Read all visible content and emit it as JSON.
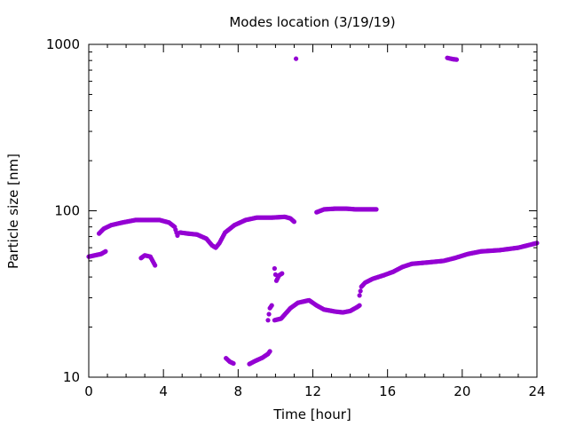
{
  "chart_data": {
    "type": "scatter",
    "title": "Modes location (3/19/19)",
    "xlabel": "Time [hour]",
    "ylabel": "Particle size [nm]",
    "xlim": [
      0,
      24
    ],
    "ylim": [
      10,
      1000
    ],
    "y_scale": "log",
    "grid": false,
    "legend": "none",
    "marker_color": "#9400d3",
    "x_ticks": [
      0,
      4,
      8,
      12,
      16,
      20,
      24
    ],
    "x_tick_labels": [
      "0",
      "4",
      "8",
      "12",
      "16",
      "20",
      "24"
    ],
    "y_ticks": [
      10,
      100,
      1000
    ],
    "y_tick_labels": [
      "10",
      "100",
      "1000"
    ],
    "series": [
      {
        "segments": [
          [
            [
              0.0,
              53
            ],
            [
              0.33,
              54
            ],
            [
              0.66,
              55
            ],
            [
              0.9,
              57
            ]
          ],
          [
            [
              0.55,
              73
            ],
            [
              0.8,
              78
            ],
            [
              1.2,
              82
            ],
            [
              1.8,
              85
            ],
            [
              2.5,
              88
            ],
            [
              3.2,
              88
            ],
            [
              3.8,
              88
            ],
            [
              4.3,
              85
            ],
            [
              4.6,
              80
            ],
            [
              4.75,
              71
            ]
          ],
          [
            [
              4.9,
              74
            ],
            [
              5.3,
              73
            ],
            [
              5.8,
              72
            ],
            [
              6.3,
              68
            ],
            [
              6.6,
              62
            ],
            [
              6.8,
              60
            ],
            [
              7.0,
              64
            ],
            [
              7.3,
              74
            ],
            [
              7.8,
              82
            ],
            [
              8.4,
              88
            ],
            [
              9.0,
              91
            ],
            [
              9.8,
              91
            ],
            [
              10.5,
              92
            ],
            [
              10.8,
              90
            ],
            [
              11.0,
              86
            ]
          ],
          [
            [
              2.8,
              52
            ],
            [
              3.0,
              54
            ],
            [
              3.3,
              53
            ],
            [
              3.55,
              47
            ]
          ],
          [
            [
              7.35,
              13
            ],
            [
              7.55,
              12.4
            ],
            [
              7.75,
              12.1
            ]
          ],
          [
            [
              8.6,
              12
            ],
            [
              8.9,
              12.5
            ],
            [
              9.3,
              13.1
            ],
            [
              9.6,
              13.8
            ],
            [
              9.7,
              14.3
            ]
          ],
          [
            [
              9.6,
              22
            ],
            [
              9.7,
              26
            ],
            [
              9.8,
              27
            ]
          ],
          [
            [
              9.95,
              45
            ],
            [
              10.05,
              38
            ],
            [
              10.2,
              41
            ],
            [
              10.35,
              42
            ]
          ],
          [
            [
              9.95,
              22
            ],
            [
              10.3,
              22.5
            ],
            [
              10.8,
              26
            ],
            [
              11.2,
              28
            ],
            [
              11.8,
              29
            ],
            [
              12.2,
              27
            ],
            [
              12.6,
              25.5
            ],
            [
              13.2,
              24.8
            ],
            [
              13.6,
              24.5
            ],
            [
              14.0,
              25
            ],
            [
              14.4,
              26.5
            ],
            [
              14.5,
              27
            ]
          ],
          [
            [
              12.2,
              98
            ],
            [
              12.6,
              102
            ],
            [
              13.2,
              103
            ],
            [
              13.8,
              103
            ],
            [
              14.3,
              102
            ],
            [
              14.9,
              102
            ],
            [
              15.4,
              102
            ]
          ],
          [
            [
              14.5,
              31
            ],
            [
              14.6,
              35
            ],
            [
              14.8,
              37
            ],
            [
              15.2,
              39
            ],
            [
              15.8,
              41
            ],
            [
              16.3,
              43
            ],
            [
              16.8,
              46
            ],
            [
              17.3,
              48
            ],
            [
              18.2,
              49
            ],
            [
              19.0,
              50
            ],
            [
              19.6,
              52
            ],
            [
              20.3,
              55
            ],
            [
              21.0,
              57
            ],
            [
              22.0,
              58
            ],
            [
              23.0,
              60
            ],
            [
              24.0,
              64
            ]
          ],
          [
            [
              11.1,
              820
            ]
          ],
          [
            [
              19.2,
              830
            ],
            [
              19.5,
              815
            ],
            [
              19.7,
              810
            ]
          ]
        ]
      }
    ]
  }
}
